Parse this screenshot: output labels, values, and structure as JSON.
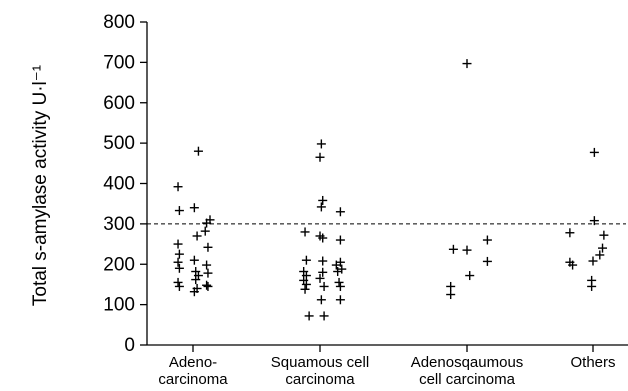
{
  "chart_data": {
    "type": "scatter",
    "ylabel": "Total s-amylase activity  U·l⁻¹",
    "xlabel": "",
    "title": "",
    "ylim": [
      0,
      800
    ],
    "yticks": [
      0,
      100,
      200,
      300,
      400,
      500,
      600,
      700,
      800
    ],
    "categories": [
      [
        "Adeno-",
        "carcinoma"
      ],
      [
        "Squamous cell",
        "carcinoma"
      ],
      [
        "Adenosqaumous",
        "cell carcinoma"
      ],
      [
        "Others"
      ]
    ],
    "reference_line": {
      "y": 300,
      "style": "dashed"
    },
    "grid": false,
    "series": [
      {
        "category": 0,
        "points": [
          {
            "o": -0.22,
            "y": 392
          },
          {
            "o": 0.08,
            "y": 480
          },
          {
            "o": -0.2,
            "y": 333
          },
          {
            "o": 0.02,
            "y": 340
          },
          {
            "o": 0.25,
            "y": 310
          },
          {
            "o": 0.2,
            "y": 302
          },
          {
            "o": 0.18,
            "y": 282
          },
          {
            "o": 0.06,
            "y": 270
          },
          {
            "o": -0.22,
            "y": 250
          },
          {
            "o": 0.22,
            "y": 242
          },
          {
            "o": -0.2,
            "y": 225
          },
          {
            "o": 0.02,
            "y": 210
          },
          {
            "o": -0.22,
            "y": 205
          },
          {
            "o": 0.2,
            "y": 198
          },
          {
            "o": -0.2,
            "y": 190
          },
          {
            "o": 0.04,
            "y": 182
          },
          {
            "o": 0.22,
            "y": 178
          },
          {
            "o": 0.08,
            "y": 172
          },
          {
            "o": 0.04,
            "y": 162
          },
          {
            "o": -0.22,
            "y": 155
          },
          {
            "o": -0.2,
            "y": 145
          },
          {
            "o": 0.2,
            "y": 148
          },
          {
            "o": 0.06,
            "y": 140
          },
          {
            "o": 0.22,
            "y": 145
          },
          {
            "o": 0.02,
            "y": 132
          }
        ]
      },
      {
        "category": 1,
        "points": [
          {
            "o": 0.02,
            "y": 498
          },
          {
            "o": 0.0,
            "y": 465
          },
          {
            "o": 0.04,
            "y": 358
          },
          {
            "o": 0.02,
            "y": 342
          },
          {
            "o": 0.3,
            "y": 330
          },
          {
            "o": -0.22,
            "y": 280
          },
          {
            "o": 0.0,
            "y": 270
          },
          {
            "o": 0.04,
            "y": 265
          },
          {
            "o": 0.3,
            "y": 260
          },
          {
            "o": -0.2,
            "y": 210
          },
          {
            "o": 0.04,
            "y": 208
          },
          {
            "o": 0.3,
            "y": 205
          },
          {
            "o": 0.24,
            "y": 198
          },
          {
            "o": 0.32,
            "y": 188
          },
          {
            "o": 0.26,
            "y": 182
          },
          {
            "o": -0.24,
            "y": 182
          },
          {
            "o": 0.04,
            "y": 180
          },
          {
            "o": -0.2,
            "y": 172
          },
          {
            "o": 0.0,
            "y": 165
          },
          {
            "o": -0.24,
            "y": 160
          },
          {
            "o": 0.28,
            "y": 155
          },
          {
            "o": -0.2,
            "y": 150
          },
          {
            "o": 0.06,
            "y": 145
          },
          {
            "o": 0.3,
            "y": 145
          },
          {
            "o": -0.22,
            "y": 138
          },
          {
            "o": 0.02,
            "y": 112
          },
          {
            "o": 0.3,
            "y": 112
          },
          {
            "o": -0.16,
            "y": 72
          },
          {
            "o": 0.06,
            "y": 72
          }
        ]
      },
      {
        "category": 2,
        "points": [
          {
            "o": 0.0,
            "y": 697
          },
          {
            "o": 0.3,
            "y": 260
          },
          {
            "o": -0.2,
            "y": 237
          },
          {
            "o": 0.0,
            "y": 235
          },
          {
            "o": 0.3,
            "y": 207
          },
          {
            "o": 0.04,
            "y": 172
          },
          {
            "o": -0.24,
            "y": 145
          },
          {
            "o": -0.24,
            "y": 125
          }
        ]
      },
      {
        "category": 3,
        "points": [
          {
            "o": 0.02,
            "y": 477
          },
          {
            "o": 0.02,
            "y": 308
          },
          {
            "o": -0.34,
            "y": 278
          },
          {
            "o": 0.16,
            "y": 272
          },
          {
            "o": 0.14,
            "y": 240
          },
          {
            "o": 0.1,
            "y": 223
          },
          {
            "o": -0.34,
            "y": 205
          },
          {
            "o": -0.3,
            "y": 198
          },
          {
            "o": 0.0,
            "y": 208
          },
          {
            "o": -0.02,
            "y": 160
          },
          {
            "o": -0.02,
            "y": 145
          }
        ]
      }
    ]
  }
}
